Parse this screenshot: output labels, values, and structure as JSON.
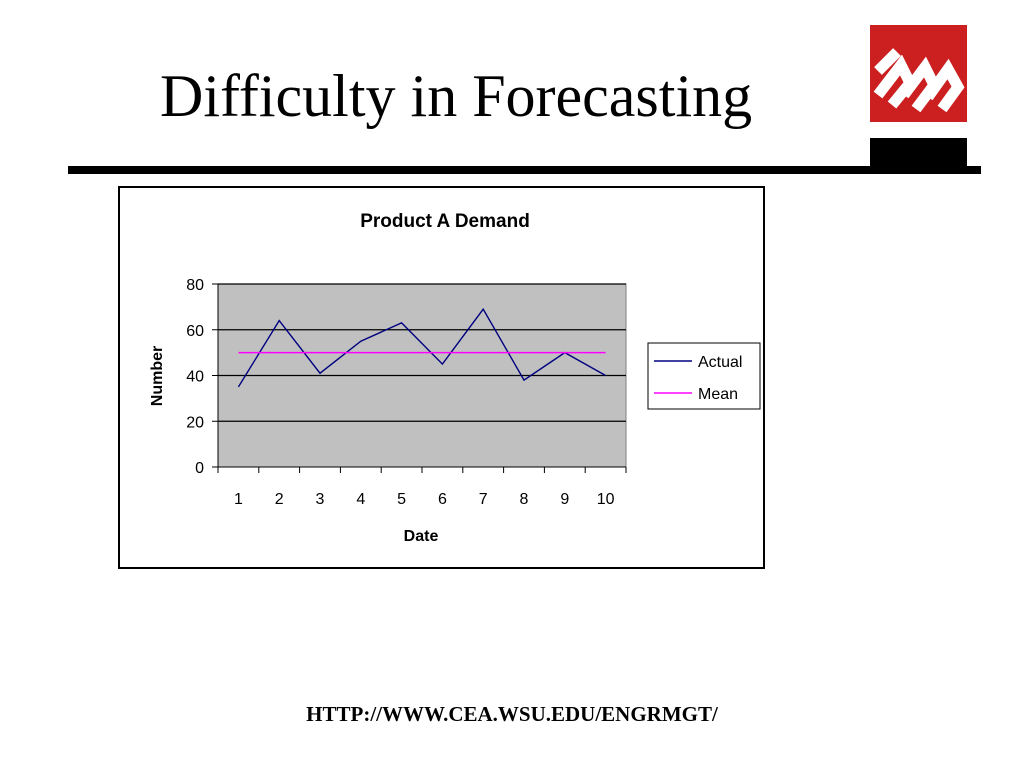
{
  "slide": {
    "title": "Difficulty in Forecasting",
    "footer_url": "HTTP://WWW.CEA.WSU.EDU/ENGRMGT/",
    "logo_icon": "wsu-logo-icon",
    "logo_color": "#cc1f1f"
  },
  "chart_data": {
    "type": "line",
    "title": "Product A Demand",
    "xlabel": "Date",
    "ylabel": "Number",
    "categories": [
      "1",
      "2",
      "3",
      "4",
      "5",
      "6",
      "7",
      "8",
      "9",
      "10"
    ],
    "ylim": [
      0,
      80
    ],
    "yticks": [
      0,
      20,
      40,
      60,
      80
    ],
    "grid": true,
    "plot_background": "#c0c0c0",
    "legend_position": "right",
    "series": [
      {
        "name": "Actual",
        "color": "#000080",
        "values": [
          35,
          64,
          41,
          55,
          63,
          45,
          69,
          38,
          50,
          40
        ]
      },
      {
        "name": "Mean",
        "color": "#ff00ff",
        "values": [
          50,
          50,
          50,
          50,
          50,
          50,
          50,
          50,
          50,
          50
        ]
      }
    ]
  }
}
